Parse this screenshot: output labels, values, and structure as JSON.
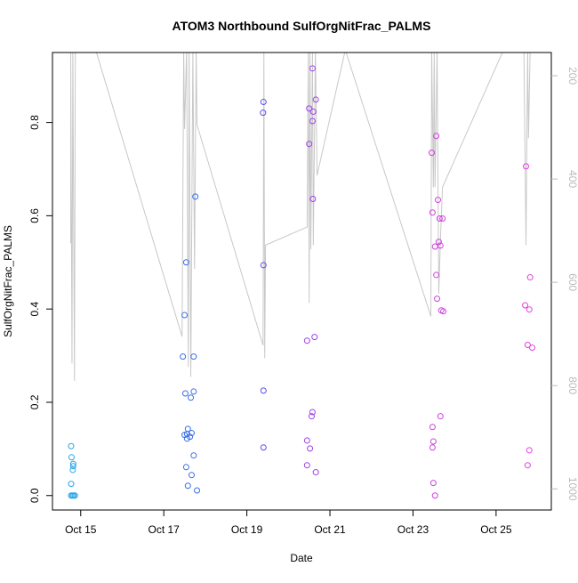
{
  "chart_data": {
    "type": "scatter",
    "title": "ATOM3 Northbound SulfOrgNitFrac_PALMS",
    "xlabel": "Date",
    "ylabel": "SulfOrgNitFrac_PALMS",
    "xlim": [
      14.32,
      26.33
    ],
    "xticks": [
      {
        "value": 15,
        "label": "Oct 15"
      },
      {
        "value": 17,
        "label": "Oct 17"
      },
      {
        "value": 19,
        "label": "Oct 19"
      },
      {
        "value": 21,
        "label": "Oct 21"
      },
      {
        "value": 23,
        "label": "Oct 23"
      },
      {
        "value": 25,
        "label": "Oct 25"
      }
    ],
    "ylim": [
      -0.031,
      0.95
    ],
    "yticks": [
      {
        "value": 0,
        "label": "0.0"
      },
      0.2,
      0.4,
      0.6,
      0.8
    ],
    "y2lim": [
      1041,
      155
    ],
    "y2ticks": [
      200,
      400,
      600,
      800,
      1000
    ],
    "series": [
      {
        "color": "#2aa6e6",
        "x": [
          14.77,
          14.78,
          14.82,
          14.82,
          14.81,
          14.77,
          14.77,
          14.8,
          14.83,
          14.86
        ],
        "values": [
          0.106,
          0.082,
          0.068,
          0.063,
          0.055,
          0.025,
          0,
          0,
          0,
          0
        ]
      },
      {
        "color": "#3a6ee8",
        "x": [
          17.5,
          17.54,
          17.46,
          17.76,
          17.72,
          17.52,
          17.72,
          17.65,
          17.58,
          17.5,
          17.56,
          17.67,
          17.63,
          17.56,
          17.72,
          17.54,
          17.67,
          17.58,
          17.8
        ],
        "values": [
          0.387,
          0.5,
          0.298,
          0.641,
          0.298,
          0.219,
          0.223,
          0.21,
          0.143,
          0.13,
          0.132,
          0.134,
          0.126,
          0.122,
          0.086,
          0.061,
          0.044,
          0.021,
          0.011
        ]
      },
      {
        "color": "#5a50ea",
        "x": [
          19.4,
          19.39,
          19.4,
          19.4,
          19.4
        ],
        "values": [
          0.844,
          0.821,
          0.494,
          0.225,
          0.103
        ]
      },
      {
        "color": "#a040e8",
        "x": [
          20.58,
          20.5,
          20.6,
          20.66,
          20.58,
          20.5,
          20.59,
          20.63,
          20.45,
          20.58,
          20.56,
          20.45,
          20.52,
          20.45,
          20.66
        ],
        "values": [
          0.916,
          0.83,
          0.823,
          0.849,
          0.803,
          0.754,
          0.636,
          0.34,
          0.332,
          0.179,
          0.17,
          0.118,
          0.101,
          0.065,
          0.05
        ]
      },
      {
        "color": "#d040e0",
        "x": [
          23.56,
          23.45,
          23.6,
          23.47,
          23.64,
          23.71,
          23.62,
          23.66,
          23.53,
          23.56,
          23.58,
          23.68,
          23.73,
          23.66,
          23.47,
          23.49,
          23.47,
          23.49,
          23.53
        ],
        "values": [
          0.771,
          0.735,
          0.634,
          0.607,
          0.594,
          0.594,
          0.544,
          0.536,
          0.534,
          0.473,
          0.422,
          0.397,
          0.395,
          0.17,
          0.147,
          0.116,
          0.103,
          0.027,
          0
        ]
      },
      {
        "color": "#e23ee0",
        "x": [
          25.72,
          25.82,
          25.7,
          25.8,
          25.76,
          25.87,
          25.8,
          25.76
        ],
        "values": [
          0.706,
          0.468,
          0.408,
          0.399,
          0.323,
          0.317,
          0.097,
          0.065
        ]
      },
      {
        "color": "#c8c8c8",
        "axis": "y2",
        "x": [
          14.76,
          14.76,
          14.79,
          14.81,
          14.85,
          14.87,
          15.36,
          17.44,
          17.48,
          17.5,
          17.55,
          17.59,
          17.61,
          17.65,
          17.7,
          17.74,
          17.78,
          17.8,
          19.39,
          19.41,
          19.43,
          19.45,
          20.45,
          20.48,
          20.5,
          20.52,
          20.54,
          20.58,
          20.6,
          20.65,
          20.69,
          21.37,
          23.43,
          23.45,
          23.49,
          23.51,
          23.53,
          23.58,
          23.62,
          23.66,
          23.71,
          25.18,
          25.67,
          25.72,
          25.76,
          25.78,
          25.82
        ],
        "values": [
          524,
          150,
          757,
          150,
          791,
          150,
          150,
          705,
          150,
          303,
          150,
          764,
          150,
          783,
          150,
          574,
          150,
          295,
          722,
          150,
          747,
          528,
          493,
          150,
          640,
          150,
          536,
          150,
          528,
          150,
          393,
          150,
          666,
          150,
          416,
          150,
          416,
          150,
          622,
          519,
          416,
          150,
          150,
          528,
          150,
          321,
          150
        ]
      }
    ]
  }
}
